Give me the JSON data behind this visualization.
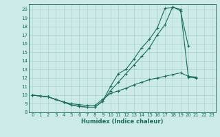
{
  "xlabel": "Humidex (Indice chaleur)",
  "background_color": "#cceae7",
  "grid_color": "#aad4d0",
  "line_color": "#1a6b5a",
  "xlim": [
    -0.5,
    23.5
  ],
  "ylim": [
    8,
    20.6
  ],
  "yticks": [
    8,
    9,
    10,
    11,
    12,
    13,
    14,
    15,
    16,
    17,
    18,
    19,
    20
  ],
  "xticks": [
    0,
    1,
    2,
    3,
    4,
    5,
    6,
    7,
    8,
    9,
    10,
    11,
    12,
    13,
    14,
    15,
    16,
    17,
    18,
    19,
    20,
    21,
    22,
    23
  ],
  "s1_x": [
    0,
    1,
    2,
    3,
    4,
    5,
    6,
    7,
    8,
    9,
    10,
    11,
    12,
    13,
    14,
    15,
    16,
    17,
    18,
    19,
    20,
    21
  ],
  "s1_y": [
    10.0,
    9.9,
    9.8,
    9.5,
    9.2,
    8.85,
    8.7,
    8.6,
    8.6,
    9.3,
    11.0,
    12.5,
    13.0,
    14.2,
    15.5,
    16.5,
    17.8,
    20.1,
    20.2,
    20.0,
    12.1,
    12.0
  ],
  "s2_x": [
    0,
    1,
    2,
    3,
    4,
    5,
    6,
    7,
    8,
    9,
    10,
    11,
    12,
    13,
    14,
    15,
    16,
    17,
    18,
    19,
    20
  ],
  "s2_y": [
    10.0,
    9.9,
    9.8,
    9.5,
    9.2,
    8.85,
    8.7,
    8.6,
    8.6,
    9.3,
    10.5,
    11.5,
    12.5,
    13.5,
    14.5,
    15.5,
    17.0,
    18.2,
    20.3,
    19.8,
    15.7
  ],
  "s3_x": [
    0,
    1,
    2,
    3,
    4,
    5,
    6,
    7,
    8,
    9,
    10,
    11,
    12,
    13,
    14,
    15,
    16,
    17,
    18,
    19,
    20,
    21
  ],
  "s3_y": [
    10.0,
    9.9,
    9.8,
    9.5,
    9.2,
    9.0,
    8.9,
    8.8,
    8.8,
    9.5,
    10.2,
    10.5,
    10.8,
    11.2,
    11.5,
    11.8,
    12.0,
    12.2,
    12.4,
    12.6,
    12.2,
    12.1
  ],
  "tick_fontsize": 5.0,
  "xlabel_fontsize": 6.0
}
